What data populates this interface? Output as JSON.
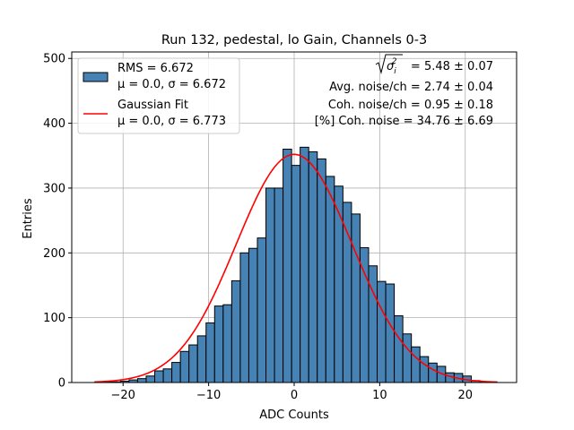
{
  "chart_data": {
    "type": "bar",
    "title": "Run 132, pedestal, lo Gain, Channels 0-3",
    "xlabel": "ADC Counts",
    "ylabel": "Entries",
    "xlim": [
      -26,
      26
    ],
    "ylim": [
      0,
      510
    ],
    "xticks": [
      -20,
      -10,
      0,
      10,
      20
    ],
    "yticks": [
      0,
      100,
      200,
      300,
      400,
      500
    ],
    "xtick_labels": [
      "−20",
      "−10",
      "0",
      "10",
      "20"
    ],
    "ytick_labels": [
      "0",
      "100",
      "200",
      "300",
      "400",
      "500"
    ],
    "grid": true,
    "bin_edges_start": -23.3,
    "bin_width": 1.0,
    "values": [
      1,
      1,
      1,
      2,
      4,
      6,
      10,
      18,
      21,
      31,
      48,
      58,
      72,
      92,
      118,
      120,
      157,
      200,
      207,
      223,
      300,
      300,
      360,
      335,
      363,
      356,
      345,
      318,
      303,
      278,
      260,
      208,
      180,
      156,
      152,
      103,
      75,
      55,
      40,
      30,
      25,
      15,
      14,
      10,
      3,
      1,
      1
    ],
    "fit_curve": {
      "mu": 0.0,
      "sigma": 6.773,
      "amplitude": 352
    },
    "legend": [
      {
        "name": "RMS = 6.672",
        "sub": "μ = 0.0, σ = 6.672",
        "kind": "patch",
        "color": "#4682b4"
      },
      {
        "name": "Gaussian Fit",
        "sub": "μ = 0.0, σ = 6.773",
        "kind": "line",
        "color": "#ff0000"
      }
    ],
    "legend_position": "top-left",
    "annotations": [
      {
        "rad_lhs": "σ",
        "rad_sub": "i",
        "rad_sup": "2",
        "rhs": " = 5.48 ± 0.07"
      },
      {
        "text": "Avg. noise/ch = 2.74 ± 0.04"
      },
      {
        "text": "Coh. noise/ch = 0.95 ± 0.18"
      },
      {
        "text": "[%] Coh. noise = 34.76 ± 6.69"
      }
    ],
    "colors": {
      "bar_fill": "#4682b4",
      "bar_edge": "#000000",
      "fit_line": "#ff0000",
      "grid": "#b0b0b0"
    }
  }
}
